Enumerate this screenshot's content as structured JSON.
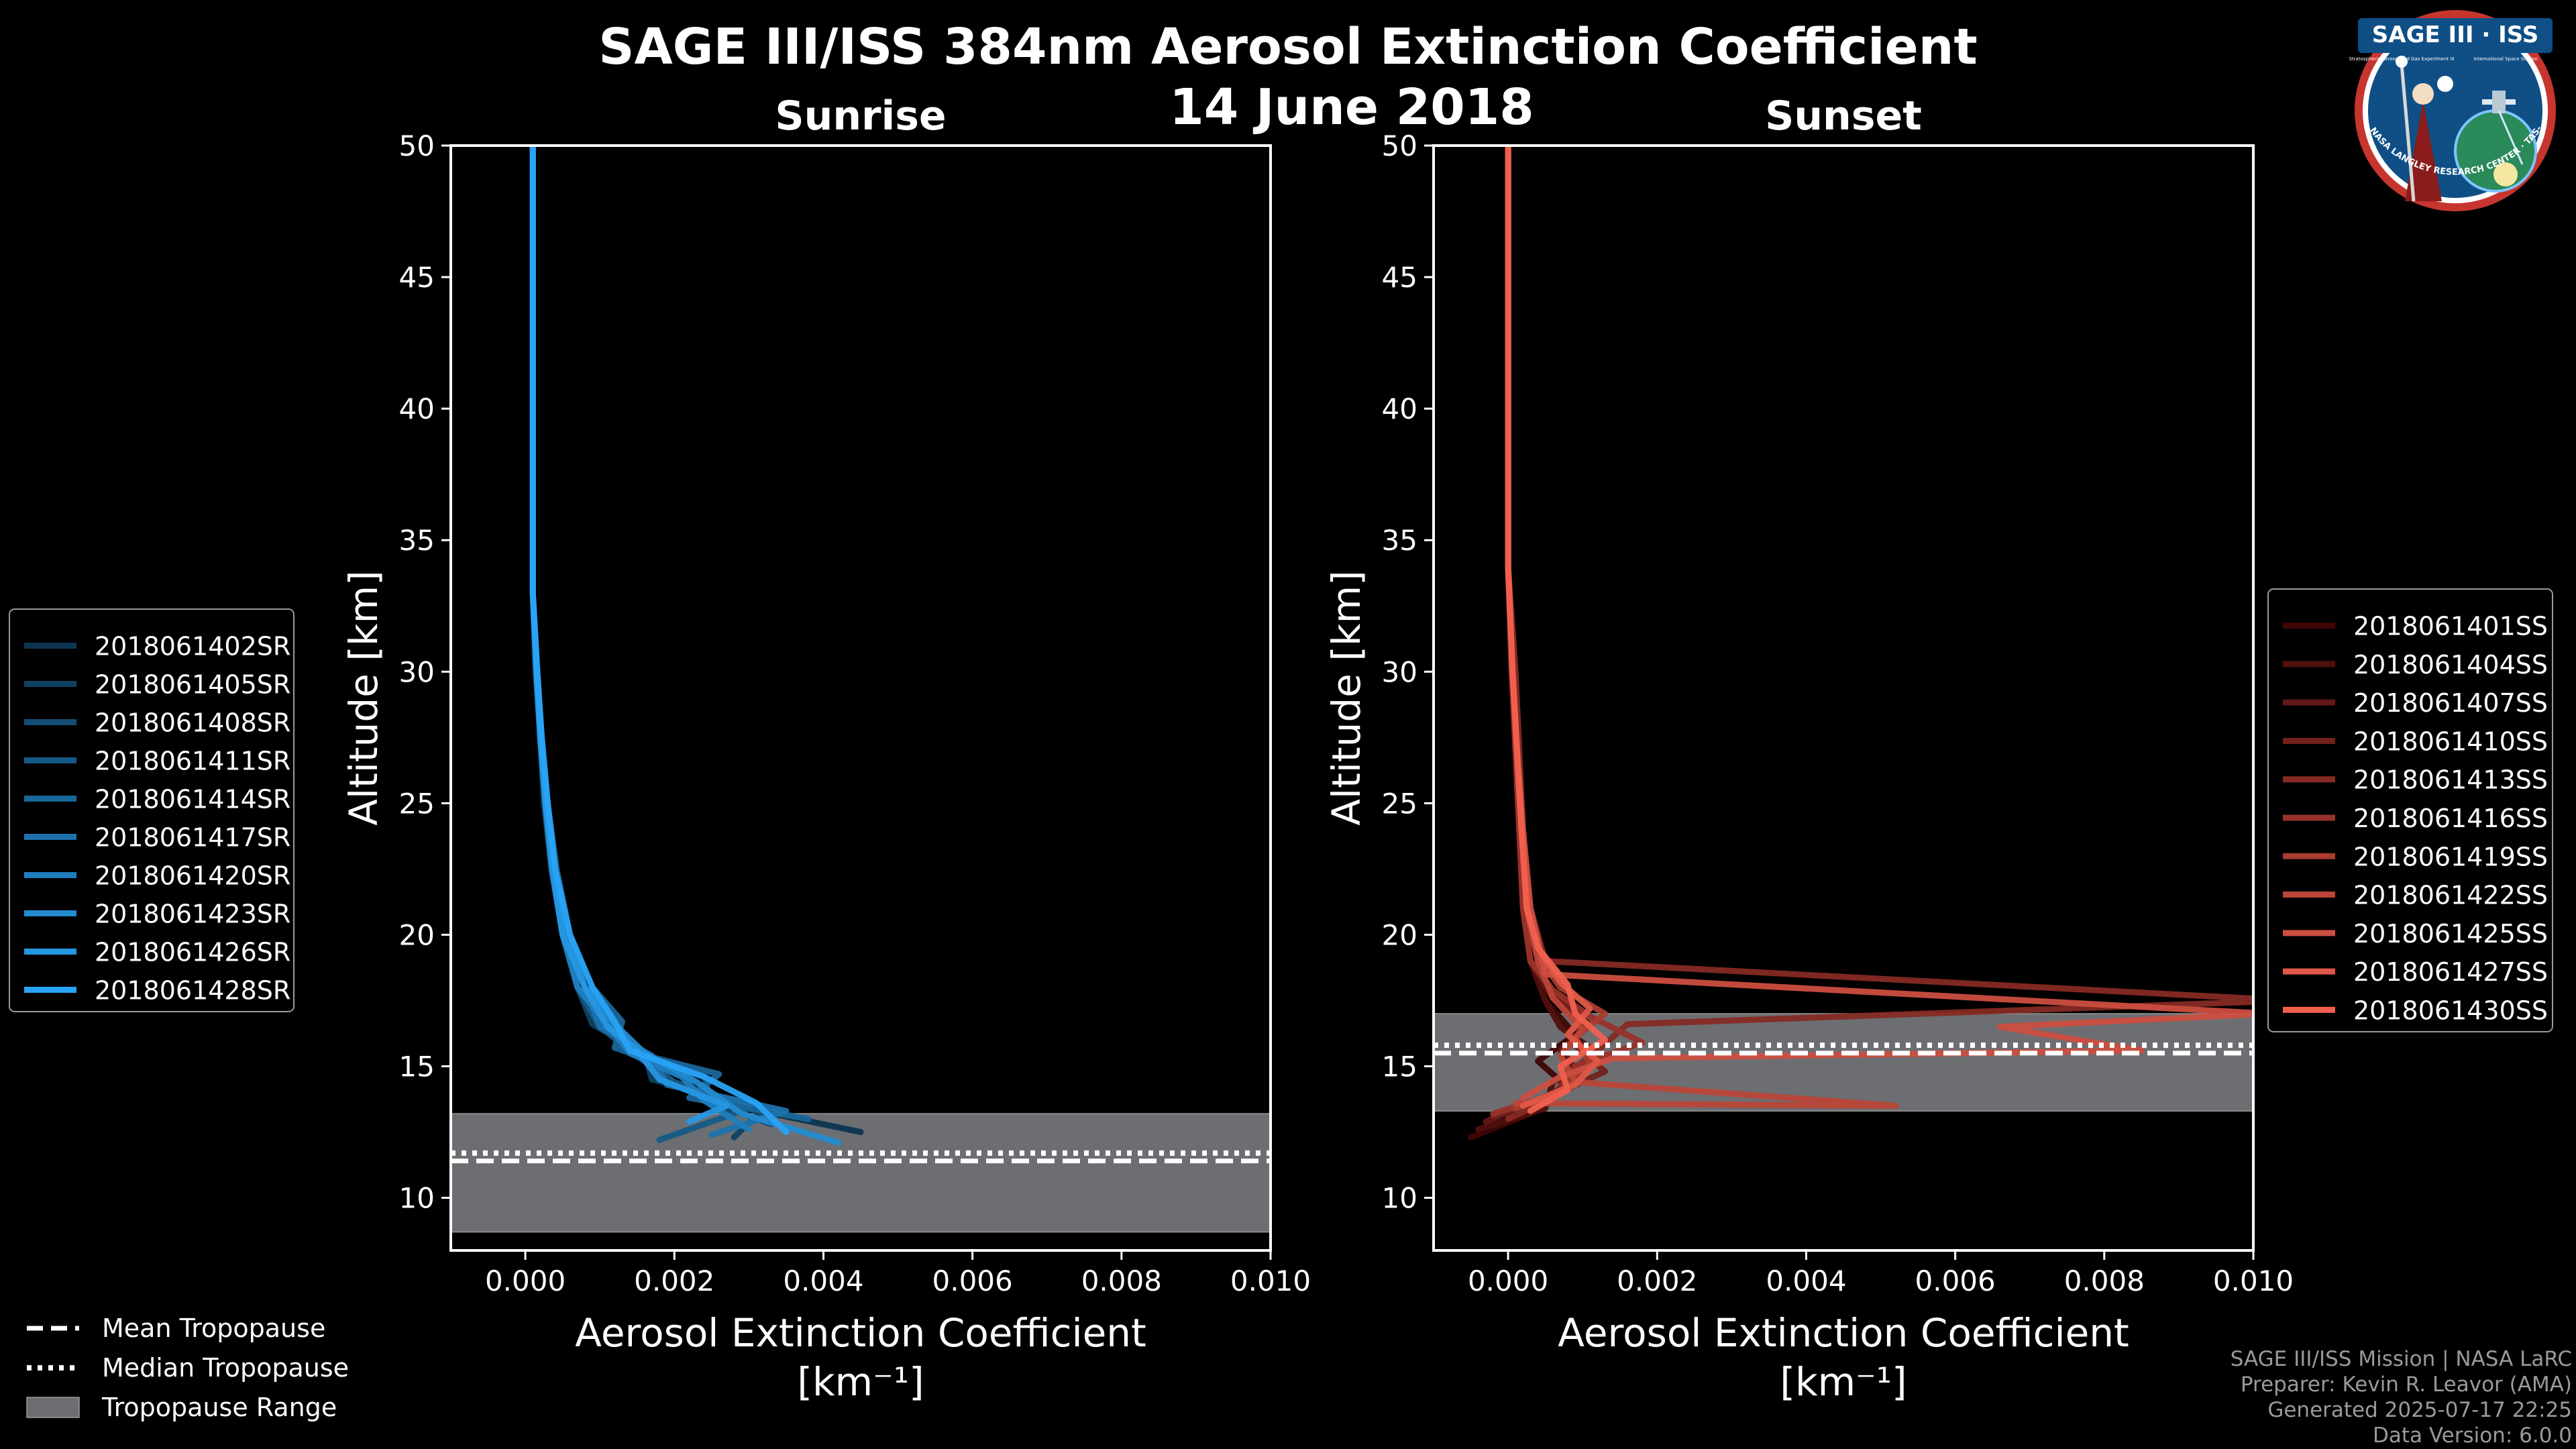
{
  "title_line1": "SAGE III/ISS 384nm Aerosol Extinction Coefficient",
  "title_line2": "14 June 2018",
  "logo": {
    "name": "SAGE III · ISS",
    "ring_text": "BALL · NASA LANGLEY RESEARCH CENTER · TAS-I · ESA",
    "sub_left": "Stratospheric Aerosol and Gas Experiment III",
    "sub_right": "International Space Station"
  },
  "footer": {
    "line1": "SAGE III/ISS Mission | NASA LaRC",
    "line2": "Preparer: Kevin R. Leavor (AMA)",
    "line3": "Generated 2025-07-17 22:25",
    "line4": "Data Version: 6.0.0"
  },
  "tropopause_legend": {
    "mean": "Mean Tropopause",
    "median": "Median Tropopause",
    "range": "Tropopause Range"
  },
  "colors": {
    "background": "#000000",
    "tropopause_fill": "#6c6e72",
    "sunrise_light": "#29a3f5",
    "sunrise_dark": "#0d3550",
    "sunset_light": "#f0604e",
    "sunset_dark": "#3e0606"
  },
  "chart_data": [
    {
      "type": "line",
      "title": "Sunrise",
      "xlabel": "Aerosol Extinction Coefficient",
      "xlabel_units": "[km⁻¹]",
      "ylabel": "Altitude [km]",
      "xlim": [
        -0.001,
        0.01
      ],
      "ylim": [
        8,
        50
      ],
      "xticks": [
        0.0,
        0.002,
        0.004,
        0.006,
        0.008,
        0.01
      ],
      "xtick_labels": [
        "0.000",
        "0.002",
        "0.004",
        "0.006",
        "0.008",
        "0.010"
      ],
      "yticks": [
        10,
        15,
        20,
        25,
        30,
        35,
        40,
        45,
        50
      ],
      "grid": false,
      "legend_position": "outside-left",
      "tropopause": {
        "mean": 11.4,
        "median": 11.7,
        "range": [
          8.7,
          13.2
        ]
      },
      "series": [
        {
          "name": "2018061402SR",
          "x": [
            0.0045,
            0.0028,
            0.0022,
            0.0014,
            0.0011,
            0.0008,
            0.0005,
            0.00035,
            0.00025,
            0.0002,
            0.00015,
            0.0001,
            0.0001,
            0.0001,
            0.0001,
            0.0001
          ],
          "y": [
            12.5,
            13.5,
            14.5,
            15.5,
            16.5,
            18,
            20,
            22.5,
            25,
            27.5,
            30,
            33,
            36,
            40,
            45,
            50
          ]
        },
        {
          "name": "2018061405SR",
          "x": [
            0.0028,
            0.0032,
            0.0017,
            0.0016,
            0.0009,
            0.0007,
            0.0005,
            0.0004,
            0.00028,
            0.0002,
            0.00015,
            0.0001,
            0.0001,
            0.0001,
            0.0001,
            0.0001
          ],
          "y": [
            12.3,
            13.4,
            14.5,
            15.5,
            16.6,
            18,
            20,
            22.5,
            25,
            27.5,
            30,
            33,
            36,
            40,
            45,
            50
          ]
        },
        {
          "name": "2018061408SR",
          "x": [
            0.0033,
            0.0025,
            0.0024,
            0.0013,
            0.0012,
            0.0008,
            0.00055,
            0.0004,
            0.0003,
            0.00022,
            0.00016,
            0.0001,
            0.0001,
            0.0001,
            0.0001,
            0.0001
          ],
          "y": [
            12.8,
            13.6,
            14.6,
            15.6,
            16.6,
            18,
            20,
            22.5,
            25,
            27.5,
            30,
            33,
            36,
            40,
            45,
            50
          ]
        },
        {
          "name": "2018061411SR",
          "x": [
            0.0018,
            0.003,
            0.002,
            0.0015,
            0.001,
            0.0007,
            0.0005,
            0.00035,
            0.00026,
            0.0002,
            0.00014,
            0.0001,
            0.0001,
            0.0001,
            0.0001,
            0.0001
          ],
          "y": [
            12.2,
            13.4,
            14.4,
            15.4,
            16.5,
            18,
            20,
            22.5,
            25,
            27.5,
            30,
            33,
            36,
            40,
            45,
            50
          ]
        },
        {
          "name": "2018061414SR",
          "x": [
            0.0038,
            0.0022,
            0.0026,
            0.0012,
            0.0013,
            0.0009,
            0.0006,
            0.00042,
            0.0003,
            0.00022,
            0.00016,
            0.0001,
            0.0001,
            0.0001,
            0.0001,
            0.0001
          ],
          "y": [
            13.0,
            13.8,
            14.7,
            15.7,
            16.7,
            18,
            20,
            22.5,
            25,
            27.5,
            30,
            33,
            36,
            40,
            45,
            50
          ]
        },
        {
          "name": "2018061417SR",
          "x": [
            0.0025,
            0.0035,
            0.0019,
            0.0017,
            0.001,
            0.0008,
            0.0005,
            0.00038,
            0.00028,
            0.0002,
            0.00015,
            0.0001,
            0.0001,
            0.0001,
            0.0001,
            0.0001
          ],
          "y": [
            12.4,
            13.3,
            14.3,
            15.4,
            16.5,
            18,
            20,
            22.5,
            25,
            27.5,
            30,
            33,
            36,
            40,
            45,
            50
          ]
        },
        {
          "name": "2018061420SR",
          "x": [
            0.003,
            0.0024,
            0.0021,
            0.0014,
            0.0011,
            0.0007,
            0.0005,
            0.0004,
            0.0003,
            0.00021,
            0.00015,
            0.0001,
            0.0001,
            0.0001,
            0.0001,
            0.0001
          ],
          "y": [
            12.6,
            13.7,
            14.6,
            15.5,
            16.6,
            18,
            20,
            22.5,
            25,
            27.5,
            30,
            33,
            36,
            40,
            45,
            50
          ]
        },
        {
          "name": "2018061423SR",
          "x": [
            0.0042,
            0.0029,
            0.0023,
            0.0016,
            0.0012,
            0.0008,
            0.00055,
            0.0004,
            0.0003,
            0.00022,
            0.00016,
            0.0001,
            0.0001,
            0.0001,
            0.0001,
            0.0001
          ],
          "y": [
            12.1,
            13.2,
            14.4,
            15.5,
            16.6,
            18,
            20,
            22.5,
            25,
            27.5,
            30,
            33,
            36,
            40,
            45,
            50
          ]
        },
        {
          "name": "2018061426SR",
          "x": [
            0.0022,
            0.0027,
            0.0018,
            0.0015,
            0.0011,
            0.0008,
            0.0005,
            0.00036,
            0.00027,
            0.0002,
            0.00015,
            0.0001,
            0.0001,
            0.0001,
            0.0001,
            0.0001
          ],
          "y": [
            12.9,
            13.5,
            14.5,
            15.6,
            16.5,
            18,
            20,
            22.5,
            25,
            27.5,
            30,
            33,
            36,
            40,
            45,
            50
          ]
        },
        {
          "name": "2018061428SR",
          "x": [
            0.0035,
            0.0031,
            0.0024,
            0.0014,
            0.0012,
            0.0009,
            0.0006,
            0.0004,
            0.0003,
            0.00022,
            0.00016,
            0.0001,
            0.0001,
            0.0001,
            0.0001,
            0.0001
          ],
          "y": [
            12.5,
            13.6,
            14.6,
            15.6,
            16.7,
            18,
            20,
            22.5,
            25,
            27.5,
            30,
            33,
            36,
            40,
            45,
            50
          ]
        }
      ]
    },
    {
      "type": "line",
      "title": "Sunset",
      "xlabel": "Aerosol Extinction Coefficient",
      "xlabel_units": "[km⁻¹]",
      "ylabel": "Altitude [km]",
      "xlim": [
        -0.001,
        0.01
      ],
      "ylim": [
        8,
        50
      ],
      "xticks": [
        0.0,
        0.002,
        0.004,
        0.006,
        0.008,
        0.01
      ],
      "xtick_labels": [
        "0.000",
        "0.002",
        "0.004",
        "0.006",
        "0.008",
        "0.010"
      ],
      "yticks": [
        10,
        15,
        20,
        25,
        30,
        35,
        40,
        45,
        50
      ],
      "grid": false,
      "legend_position": "outside-right",
      "tropopause": {
        "mean": 15.5,
        "median": 15.8,
        "range": [
          13.3,
          17.0
        ]
      },
      "series": [
        {
          "name": "2018061401SS",
          "x": [
            -0.0005,
            0.0003,
            0.0008,
            0.0004,
            0.0009,
            0.0005,
            0.0003,
            0.0002,
            0.00015,
            0.0001,
            5e-05,
            0.0,
            0.0,
            0.0,
            0.0
          ],
          "y": [
            12.3,
            13.2,
            14.2,
            15.2,
            16.2,
            17.5,
            19,
            21,
            24,
            27,
            30,
            34,
            38,
            44,
            50
          ]
        },
        {
          "name": "2018061404SS",
          "x": [
            -0.0004,
            0.0005,
            0.0006,
            0.0012,
            0.0007,
            0.0005,
            0.0003,
            0.0002,
            0.00015,
            0.0001,
            5e-05,
            0.0,
            0.0,
            0.0,
            0.0
          ],
          "y": [
            12.6,
            13.4,
            14.4,
            15.5,
            16.5,
            17.5,
            19,
            21,
            24,
            27,
            30,
            34,
            38,
            44,
            50
          ]
        },
        {
          "name": "2018061407SS",
          "x": [
            -0.0003,
            0.0004,
            0.001,
            0.0007,
            0.0011,
            0.0006,
            0.0003,
            0.0002,
            0.00015,
            0.0001,
            5e-05,
            0.0,
            0.0,
            0.0,
            0.0
          ],
          "y": [
            12.9,
            13.7,
            14.6,
            15.6,
            16.6,
            17.6,
            19,
            21,
            24,
            27,
            30,
            34,
            38,
            44,
            50
          ]
        },
        {
          "name": "2018061410SS",
          "x": [
            -0.0002,
            0.0006,
            0.0013,
            0.0009,
            0.001,
            0.0006,
            0.0003,
            0.0002,
            0.00015,
            0.0001,
            5e-05,
            0.0,
            0.0,
            0.0,
            0.0
          ],
          "y": [
            13.1,
            13.9,
            14.8,
            15.8,
            16.8,
            17.8,
            19,
            21,
            24,
            27,
            30,
            34,
            38,
            44,
            50
          ]
        },
        {
          "name": "2018061413SS",
          "x": [
            0.0,
            0.0006,
            0.0008,
            0.0012,
            0.0016,
            0.0105,
            0.0005,
            0.0003,
            0.0002,
            0.00015,
            0.0001,
            0.0,
            0.0,
            0.0,
            0.0
          ],
          "y": [
            13.0,
            13.8,
            14.7,
            15.6,
            16.6,
            17.5,
            19,
            21,
            24,
            27,
            30,
            34,
            38,
            44,
            50
          ]
        },
        {
          "name": "2018061416SS",
          "x": [
            -0.0002,
            0.0007,
            0.0009,
            0.0018,
            0.0011,
            0.0006,
            0.0003,
            0.0002,
            0.00015,
            0.0001,
            5e-05,
            0.0,
            0.0,
            0.0,
            0.0
          ],
          "y": [
            13.2,
            14.0,
            15.0,
            15.9,
            16.9,
            17.9,
            19,
            21,
            24,
            27,
            30,
            34,
            38,
            44,
            50
          ]
        },
        {
          "name": "2018061419SS",
          "x": [
            0.0001,
            0.0008,
            0.0011,
            0.0009,
            0.0013,
            0.0007,
            0.0004,
            0.00025,
            0.00018,
            0.00012,
            6e-05,
            0.0,
            0.0,
            0.0,
            0.0
          ],
          "y": [
            13.4,
            14.2,
            15.1,
            16.1,
            17.0,
            18.0,
            19.2,
            21,
            24,
            27,
            30,
            34,
            38,
            44,
            50
          ]
        },
        {
          "name": "2018061422SS",
          "x": [
            0.0001,
            0.0052,
            0.0009,
            0.0007,
            0.001,
            0.0006,
            0.0004,
            0.00025,
            0.00018,
            0.00012,
            6e-05,
            0.0,
            0.0,
            0.0,
            0.0
          ],
          "y": [
            13.6,
            13.5,
            14.4,
            15.4,
            16.4,
            17.6,
            19,
            21,
            24,
            27,
            30,
            34,
            38,
            44,
            50
          ]
        },
        {
          "name": "2018061425SS",
          "x": [
            0.0002,
            0.0007,
            0.0014,
            0.0085,
            0.0066,
            0.0102,
            0.0005,
            0.0003,
            0.0002,
            0.00012,
            6e-05,
            0.0,
            0.0,
            0.0,
            0.0
          ],
          "y": [
            13.8,
            14.6,
            15.3,
            15.6,
            16.5,
            17.0,
            18.5,
            21,
            24,
            27,
            30,
            34,
            38,
            44,
            50
          ]
        },
        {
          "name": "2018061427SS",
          "x": [
            0.0002,
            0.0009,
            0.0012,
            0.0008,
            0.0011,
            0.0007,
            0.0004,
            0.00025,
            0.00018,
            0.00012,
            6e-05,
            0.0,
            0.0,
            0.0,
            0.0
          ],
          "y": [
            13.5,
            14.3,
            15.2,
            16.2,
            17.2,
            18.2,
            19.5,
            21,
            24,
            27,
            30,
            34,
            38,
            44,
            50
          ]
        },
        {
          "name": "2018061430SS",
          "x": [
            0.0003,
            0.0008,
            0.0007,
            0.0013,
            0.0009,
            0.0008,
            0.0004,
            0.00025,
            0.00018,
            0.00012,
            6e-05,
            0.0,
            0.0,
            0.0,
            0.0
          ],
          "y": [
            13.3,
            14.1,
            15.0,
            16.0,
            17.0,
            18.1,
            19.5,
            21,
            24,
            27,
            30,
            34,
            38,
            44,
            50
          ]
        }
      ]
    }
  ]
}
